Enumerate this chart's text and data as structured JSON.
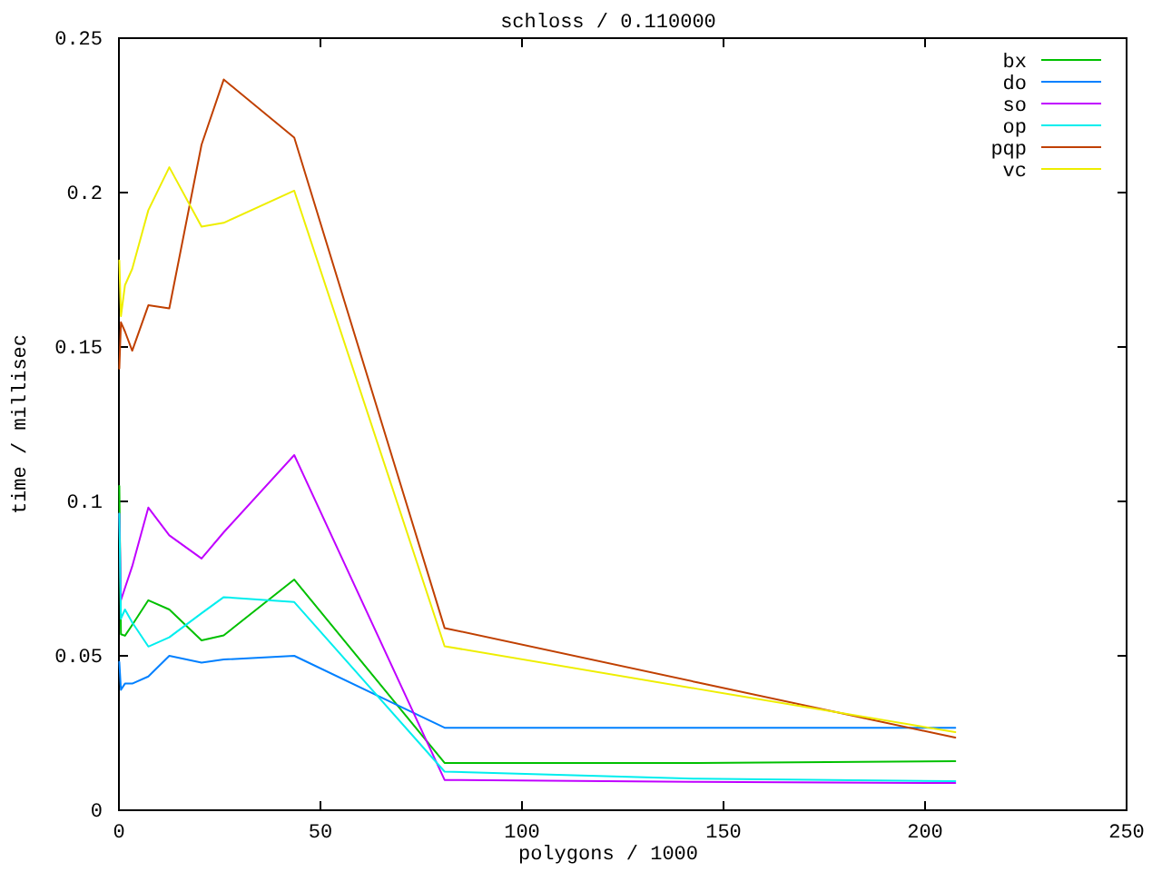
{
  "chart_data": {
    "type": "line",
    "title": "schloss / 0.110000",
    "xlabel": "polygons / 1000",
    "ylabel": "time / millisec",
    "x": [
      0.1,
      0.5,
      1.5,
      3.3,
      7.3,
      12.5,
      20.5,
      26,
      43.5,
      80.8,
      143.5,
      207.5
    ],
    "xlim": [
      0,
      250
    ],
    "xticks": [
      0,
      50,
      100,
      150,
      200,
      250
    ],
    "ylim": [
      0,
      0.25
    ],
    "yticks": [
      0,
      0.05,
      0.1,
      0.15,
      0.2,
      0.25
    ],
    "grid": false,
    "legend": "top right",
    "line_style": "solid",
    "series": [
      {
        "name": "bx",
        "color": "#00c000",
        "values": [
          0.105,
          0.057,
          0.0565,
          0.06,
          0.068,
          0.065,
          0.055,
          0.0566,
          0.0747,
          0.0153,
          0.0153,
          0.0159
        ]
      },
      {
        "name": "do",
        "color": "#0080ff",
        "values": [
          0.048,
          0.039,
          0.041,
          0.041,
          0.0433,
          0.05,
          0.0478,
          0.0488,
          0.05,
          0.0267,
          0.0267,
          0.0267
        ]
      },
      {
        "name": "so",
        "color": "#c000ff",
        "values": [
          0.096,
          0.068,
          0.072,
          0.079,
          0.098,
          0.089,
          0.0815,
          0.09,
          0.115,
          0.0098,
          0.0092,
          0.0088
        ]
      },
      {
        "name": "op",
        "color": "#00eeee",
        "values": [
          0.096,
          0.062,
          0.065,
          0.0608,
          0.053,
          0.056,
          0.0638,
          0.069,
          0.0674,
          0.0125,
          0.0102,
          0.0094
        ]
      },
      {
        "name": "pqp",
        "color": "#c04000",
        "values": [
          0.143,
          0.158,
          0.155,
          0.1488,
          0.1635,
          0.1625,
          0.2155,
          0.2366,
          0.2178,
          0.059,
          0.0414,
          0.0235
        ]
      },
      {
        "name": "vc",
        "color": "#eeee00",
        "values": [
          0.178,
          0.16,
          0.17,
          0.1753,
          0.1943,
          0.2082,
          0.189,
          0.1902,
          0.2006,
          0.0531,
          0.0393,
          0.0253
        ]
      }
    ]
  }
}
